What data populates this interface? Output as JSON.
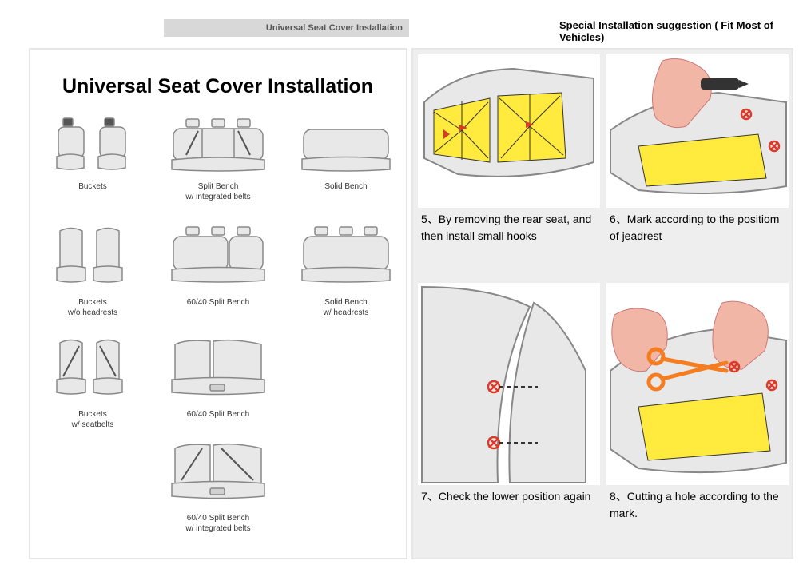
{
  "header_bar": "Universal Seat Cover Installation",
  "special_header": "Special Installation suggestion ( Fit Most of Vehicles)",
  "main_title": "Universal Seat Cover Installation",
  "seats": [
    {
      "label": "Buckets"
    },
    {
      "label": "Split Bench\nw/ integrated belts"
    },
    {
      "label": "Solid Bench"
    },
    {
      "label": "Buckets\nw/o headrests"
    },
    {
      "label": "60/40 Split Bench"
    },
    {
      "label": "Solid Bench\nw/ headrests"
    },
    {
      "label": "Buckets\nw/ seatbelts"
    },
    {
      "label": "60/40 Split Bench"
    },
    {
      "label": "60/40 Split Bench\nw/ integrated belts"
    }
  ],
  "steps": [
    {
      "num": "5、",
      "text": "By removing the rear seat, and then install small hooks"
    },
    {
      "num": "6、",
      "text": "Mark according to the positiom of jeadrest"
    },
    {
      "num": "7、",
      "text": "Check the lower position again"
    },
    {
      "num": "8、",
      "text": "Cutting a hole according to the mark."
    }
  ],
  "colors": {
    "panel_border": "#e6e6e6",
    "right_bg": "#eeeeee",
    "yellow": "#ffea3d",
    "hand": "#f2b6a6",
    "seat_fill": "#e8e8e8",
    "seat_stroke": "#888888",
    "red_arrow": "#d93a2a",
    "orange": "#f57c1f"
  }
}
